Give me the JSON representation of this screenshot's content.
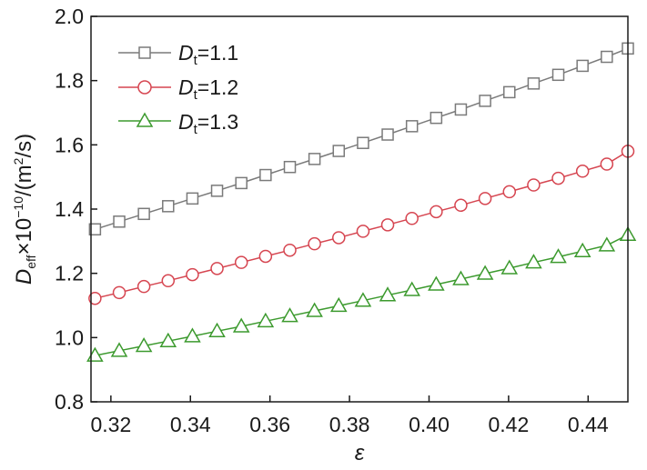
{
  "chart_data": {
    "type": "line",
    "title": "",
    "xlabel": "ε",
    "ylabel": "D",
    "ylabel_subscript": "eff",
    "ylabel_rest": "×10",
    "ylabel_exponent": "−10",
    "ylabel_unit_start": "/(m",
    "ylabel_unit_exponent": "2",
    "ylabel_unit_end": "/s)",
    "xlim": [
      0.315,
      0.45
    ],
    "ylim": [
      0.8,
      2.0
    ],
    "xticks": [
      "0.32",
      "0.34",
      "0.36",
      "0.38",
      "0.40",
      "0.42",
      "0.44"
    ],
    "xtick_values": [
      0.32,
      0.34,
      0.36,
      0.38,
      0.4,
      0.42,
      0.44
    ],
    "yticks": [
      "0.8",
      "1.0",
      "1.2",
      "1.4",
      "1.6",
      "1.8",
      "2.0"
    ],
    "ytick_values": [
      0.8,
      1.0,
      1.2,
      1.4,
      1.6,
      1.8,
      2.0
    ],
    "grid": false,
    "legend_position": "top-left",
    "x": [
      0.316,
      0.3221,
      0.3283,
      0.3344,
      0.3405,
      0.3467,
      0.3528,
      0.3589,
      0.365,
      0.3712,
      0.3773,
      0.3834,
      0.3896,
      0.3957,
      0.4018,
      0.408,
      0.4141,
      0.4202,
      0.4263,
      0.4325,
      0.4386,
      0.4447,
      0.45
    ],
    "series": [
      {
        "legend_base": "D",
        "legend_sub": "t",
        "legend_value": "=1.1",
        "color": "#7a7a7a",
        "marker": "square",
        "values": [
          1.337,
          1.361,
          1.385,
          1.409,
          1.433,
          1.457,
          1.481,
          1.506,
          1.531,
          1.556,
          1.581,
          1.606,
          1.632,
          1.658,
          1.684,
          1.71,
          1.737,
          1.764,
          1.791,
          1.818,
          1.846,
          1.874,
          1.9
        ]
      },
      {
        "legend_base": "D",
        "legend_sub": "t",
        "legend_value": "=1.2",
        "color": "#d64550",
        "marker": "circle",
        "values": [
          1.122,
          1.14,
          1.159,
          1.177,
          1.196,
          1.215,
          1.234,
          1.253,
          1.272,
          1.292,
          1.311,
          1.331,
          1.351,
          1.371,
          1.392,
          1.412,
          1.433,
          1.454,
          1.475,
          1.496,
          1.518,
          1.54,
          1.58
        ]
      },
      {
        "legend_base": "D",
        "legend_sub": "t",
        "legend_value": "=1.3",
        "color": "#3c9a2e",
        "marker": "triangle",
        "values": [
          0.944,
          0.959,
          0.974,
          0.989,
          1.004,
          1.02,
          1.035,
          1.051,
          1.067,
          1.083,
          1.099,
          1.115,
          1.132,
          1.148,
          1.165,
          1.182,
          1.199,
          1.216,
          1.234,
          1.251,
          1.269,
          1.287,
          1.32
        ]
      }
    ]
  }
}
